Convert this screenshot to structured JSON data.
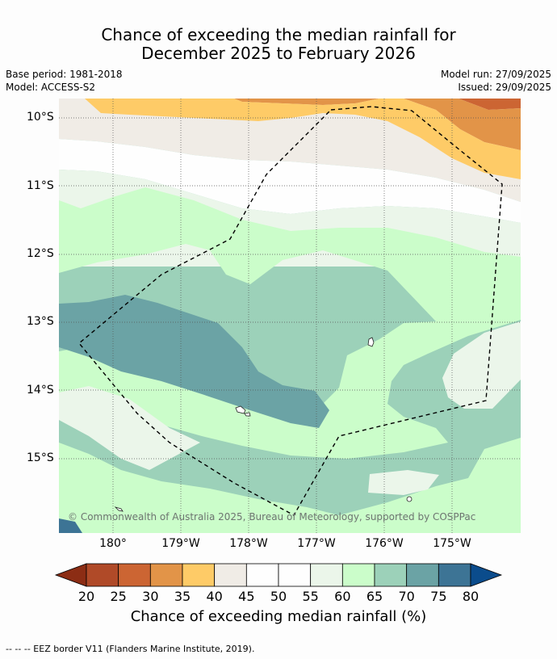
{
  "title_line1": "Chance of exceeding the median rainfall for",
  "title_line2": "December 2025 to February 2026",
  "meta": {
    "base_period": "Base period: 1981-2018",
    "model": "Model: ACCESS-S2",
    "model_run": "Model run: 27/09/2025",
    "issued": "Issued: 29/09/2025"
  },
  "map": {
    "lat_labels": [
      "10°S",
      "11°S",
      "12°S",
      "13°S",
      "14°S",
      "15°S"
    ],
    "lon_labels": [
      "180°",
      "179°W",
      "178°W",
      "177°W",
      "176°W",
      "175°W"
    ],
    "copyright": "© Commonwealth of Australia 2025, Bureau of Meteorology, supported by COSPPac"
  },
  "colorbar": {
    "levels": [
      "20",
      "25",
      "30",
      "35",
      "40",
      "45",
      "50",
      "55",
      "60",
      "65",
      "70",
      "75",
      "80"
    ],
    "colors": [
      "#8c2d14",
      "#b04a28",
      "#cc6533",
      "#e29448",
      "#fecb67",
      "#f0ece6",
      "#fefefe",
      "#fefefe",
      "#ebf6ea",
      "#cbfdca",
      "#9cd1b9",
      "#6ba3a5",
      "#3d7495",
      "#0b4c8c"
    ],
    "label": "Chance of exceeding median rainfall (%)"
  },
  "footer": "--  --  -- EEZ border V11 (Flanders Marine Institute, 2019)."
}
